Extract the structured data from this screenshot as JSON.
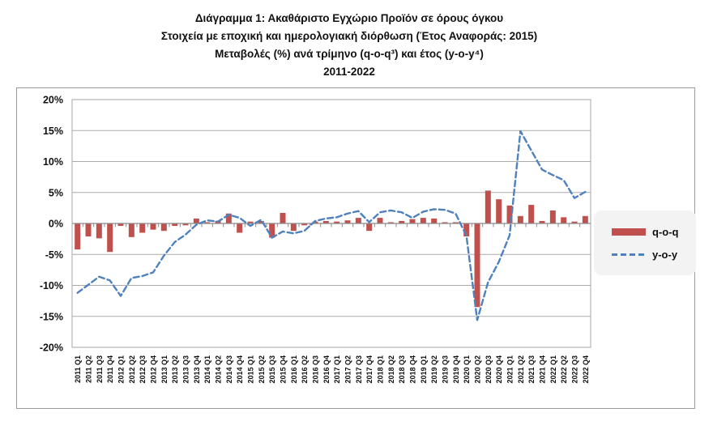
{
  "title": {
    "line1": "Διάγραμμα 1: Ακαθάριστο Εγχώριο Προϊόν σε όρους όγκου",
    "line2": "Στοιχεία με εποχική και ημερολογιακή διόρθωση (Έτος Αναφοράς: 2015)",
    "line3": "Μεταβολές (%) ανά τρίμηνο (q-o-q³) και έτος (y-o-y⁴)",
    "line4": "2011-2022"
  },
  "legend": {
    "items": [
      {
        "label": "q-o-q",
        "type": "bar",
        "color": "#C0504D"
      },
      {
        "label": "y-o-y",
        "type": "dashed-line",
        "color": "#4F81BD"
      }
    ]
  },
  "colors": {
    "bar": "#C0504D",
    "line": "#4F81BD",
    "gridline": "#ababab",
    "axis": "#8a8a8a",
    "plot_border": "#a6a6a6",
    "text": "#111111"
  },
  "chart_data": {
    "type": "combo",
    "title": "Διάγραμμα 1: Ακαθάριστο Εγχώριο Προϊόν σε όρους όγκου",
    "xlabel": "",
    "ylabel": "",
    "ylim": [
      -20,
      20
    ],
    "ytick_step": 5,
    "ytick_labels": [
      "20%",
      "15%",
      "10%",
      "5%",
      "0%",
      "-5%",
      "-10%",
      "-15%",
      "-20%"
    ],
    "grid": true,
    "legend_position": "right",
    "categories": [
      "2011 Q1",
      "2011 Q2",
      "2011 Q3",
      "2011 Q4",
      "2012 Q1",
      "2012 Q2",
      "2012 Q3",
      "2012 Q4",
      "2013 Q1",
      "2013 Q2",
      "2013 Q3",
      "2013 Q4",
      "2014 Q1",
      "2014 Q2",
      "2014 Q3",
      "2014 Q4",
      "2015 Q1",
      "2015 Q2",
      "2015 Q3",
      "2015 Q4",
      "2016 Q1",
      "2016 Q2",
      "2016 Q3",
      "2016 Q4",
      "2017 Q1",
      "2017 Q2",
      "2017 Q3",
      "2017 Q4",
      "2018 Q1",
      "2018 Q2",
      "2018 Q3",
      "2018 Q4",
      "2019 Q1",
      "2019 Q2",
      "2019 Q3",
      "2019 Q4",
      "2020 Q1",
      "2020 Q2",
      "2020 Q3",
      "2020 Q4",
      "2021 Q1",
      "2021 Q2",
      "2021 Q3",
      "2021 Q4",
      "2022 Q1",
      "2022 Q2",
      "2022 Q3",
      "2022 Q4"
    ],
    "series": [
      {
        "name": "q-o-q",
        "type": "bar",
        "color": "#C0504D",
        "values": [
          -4.2,
          -2.1,
          -2.4,
          -4.6,
          -0.4,
          -2.2,
          -1.5,
          -1.0,
          -1.2,
          -0.4,
          -0.3,
          0.8,
          0.2,
          0.4,
          1.6,
          -1.5,
          0.3,
          0.4,
          -2.3,
          1.7,
          -1.2,
          -0.3,
          0.3,
          0.4,
          0.3,
          0.5,
          0.9,
          -1.2,
          0.9,
          0.2,
          0.4,
          0.7,
          0.9,
          0.8,
          0.2,
          0.2,
          -2.1,
          -13.5,
          5.3,
          3.9,
          2.9,
          1.2,
          3.0,
          0.4,
          2.1,
          1.0,
          0.3,
          1.2
        ]
      },
      {
        "name": "y-o-y",
        "type": "line",
        "style": "dashed",
        "color": "#4F81BD",
        "values": [
          -11.2,
          -9.9,
          -8.6,
          -9.2,
          -11.7,
          -8.8,
          -8.5,
          -7.9,
          -5.2,
          -3.0,
          -1.8,
          -0.2,
          0.5,
          0.3,
          1.4,
          0.9,
          -0.4,
          0.6,
          -2.3,
          -1.3,
          -1.6,
          -1.2,
          0.4,
          0.8,
          1.0,
          1.6,
          2.0,
          0.2,
          1.8,
          2.1,
          1.8,
          0.9,
          1.9,
          2.3,
          2.2,
          1.6,
          -2.0,
          -15.6,
          -9.5,
          -6.2,
          -1.9,
          14.9,
          11.8,
          8.7,
          7.8,
          7.0,
          4.1,
          5.1
        ]
      }
    ]
  }
}
